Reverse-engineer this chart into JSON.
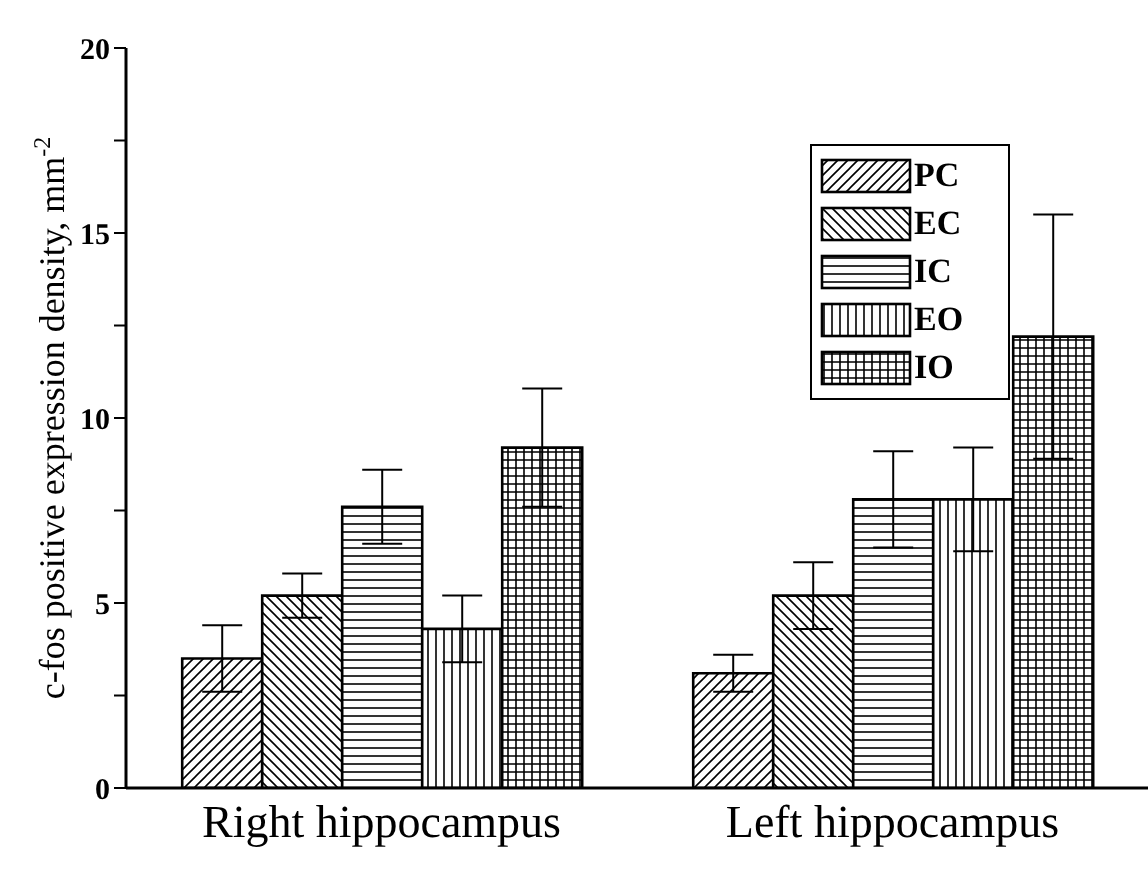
{
  "chart_data": {
    "type": "bar",
    "ylabel": "c-fos positive expression density, mm$^{-2}$",
    "categories": [
      "Right hippocampus",
      "Left hippocampus"
    ],
    "series": [
      {
        "name": "PC",
        "color": "#000000",
        "values": [
          3.5,
          3.1
        ],
        "errors": [
          0.9,
          0.5
        ]
      },
      {
        "name": "EC",
        "color": "#000000",
        "values": [
          5.2,
          5.2
        ],
        "errors": [
          0.6,
          0.9
        ]
      },
      {
        "name": "IC",
        "color": "#000000",
        "values": [
          7.6,
          7.8
        ],
        "errors": [
          1.0,
          1.3
        ]
      },
      {
        "name": "EO",
        "color": "#000000",
        "values": [
          4.3,
          7.8
        ],
        "errors": [
          0.9,
          1.4
        ]
      },
      {
        "name": "IO",
        "color": "#000000",
        "values": [
          9.2,
          12.2
        ],
        "errors": [
          1.6,
          3.3
        ]
      }
    ],
    "ylim": [
      0,
      20
    ],
    "yticks": [
      0,
      {
        "value": 2.5,
        "label": null
      },
      5,
      {
        "value": 7.5,
        "label": null
      },
      10,
      {
        "value": 12.5,
        "label": null
      },
      15,
      {
        "value": 17.5,
        "label": null
      },
      20
    ],
    "grid": false,
    "legend": "top right"
  }
}
